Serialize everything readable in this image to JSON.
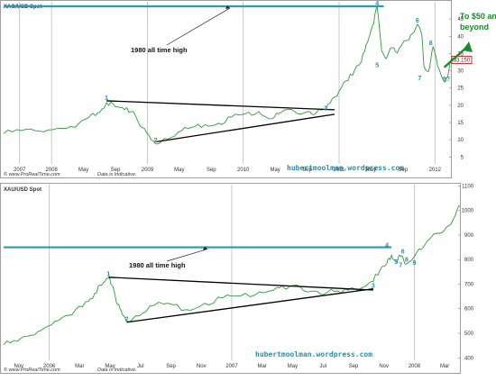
{
  "chart_data": [
    {
      "type": "line",
      "title": "XAG/USD Spot",
      "x_ticks": [
        "2007",
        "2008",
        "May",
        "Sep",
        "2009",
        "May",
        "Sep",
        "2010",
        "May",
        "Sep",
        "2011",
        "May",
        "Sep",
        "2012"
      ],
      "y_ticks": [
        5,
        10,
        15,
        20,
        25,
        30,
        35,
        40,
        45
      ],
      "ylim": [
        3,
        50
      ],
      "last_value_label": "33.150",
      "all_time_high_label": "1980 all time high",
      "all_time_high_value": 48.7,
      "target_label": "To $50 and beyond",
      "wave_labels": [
        {
          "label": "1",
          "x": 0.23,
          "y": 21
        },
        {
          "label": "2",
          "x": 0.34,
          "y": 8.8
        },
        {
          "label": "3",
          "x": 0.72,
          "y": 18
        },
        {
          "label": "4",
          "x": 0.835,
          "y": 48.4
        },
        {
          "label": "5",
          "x": 0.835,
          "y": 30.5
        },
        {
          "label": "6",
          "x": 0.925,
          "y": 43.5
        },
        {
          "label": "7",
          "x": 0.93,
          "y": 26.8
        },
        {
          "label": "8",
          "x": 0.955,
          "y": 37
        },
        {
          "label": "9?",
          "x": 0.99,
          "y": 26.5
        }
      ],
      "price_series": [
        [
          0.0,
          11.8
        ],
        [
          0.04,
          12.7
        ],
        [
          0.08,
          12.5
        ],
        [
          0.12,
          13.3
        ],
        [
          0.16,
          13.6
        ],
        [
          0.19,
          16.4
        ],
        [
          0.21,
          17.8
        ],
        [
          0.23,
          20.8
        ],
        [
          0.25,
          19.5
        ],
        [
          0.27,
          18.7
        ],
        [
          0.29,
          18.2
        ],
        [
          0.31,
          13.5
        ],
        [
          0.33,
          10.0
        ],
        [
          0.34,
          8.8
        ],
        [
          0.36,
          10.4
        ],
        [
          0.39,
          12.2
        ],
        [
          0.42,
          13.6
        ],
        [
          0.45,
          14.4
        ],
        [
          0.48,
          14.8
        ],
        [
          0.51,
          16.6
        ],
        [
          0.54,
          17.5
        ],
        [
          0.57,
          18.2
        ],
        [
          0.6,
          16.1
        ],
        [
          0.62,
          17.9
        ],
        [
          0.65,
          18.3
        ],
        [
          0.68,
          18.2
        ],
        [
          0.7,
          18.0
        ],
        [
          0.72,
          18.6
        ],
        [
          0.74,
          22.4
        ],
        [
          0.76,
          26.6
        ],
        [
          0.78,
          28.7
        ],
        [
          0.8,
          32.6
        ],
        [
          0.81,
          37.5
        ],
        [
          0.825,
          43.2
        ],
        [
          0.835,
          48.4
        ],
        [
          0.845,
          36.0
        ],
        [
          0.855,
          33.5
        ],
        [
          0.865,
          36.6
        ],
        [
          0.88,
          35.2
        ],
        [
          0.9,
          38.8
        ],
        [
          0.91,
          40.4
        ],
        [
          0.925,
          43.5
        ],
        [
          0.935,
          40.2
        ],
        [
          0.94,
          31.1
        ],
        [
          0.95,
          29.8
        ],
        [
          0.96,
          37.0
        ],
        [
          0.97,
          31.5
        ],
        [
          0.985,
          26.8
        ],
        [
          0.995,
          29.7
        ],
        [
          1.0,
          33.2
        ]
      ],
      "trend_lines": [
        {
          "from": [
            0.23,
            21.3
          ],
          "to": [
            0.74,
            18.7
          ]
        },
        {
          "from": [
            0.34,
            9.4
          ],
          "to": [
            0.74,
            17.4
          ]
        }
      ],
      "footer_left": "© www.ProRealTime.com",
      "footer_note": "Data is Indicative.",
      "watermark": "hubertmoolman.wordpress.com"
    },
    {
      "type": "line",
      "title": "XAU/USD Spot",
      "x_ticks": [
        "Nov",
        "2006",
        "Mar",
        "May",
        "Jul",
        "Sep",
        "Nov",
        "2007",
        "Mar",
        "May",
        "Jul",
        "Sep",
        "Nov",
        "2008",
        "Mar"
      ],
      "y_ticks": [
        400,
        500,
        600,
        700,
        800,
        900,
        1000,
        1100
      ],
      "ylim": [
        390,
        1105
      ],
      "all_time_high_label": "1980 all time high",
      "all_time_high_value": 850,
      "wave_labels": [
        {
          "label": "1",
          "x": 0.23,
          "y": 726
        },
        {
          "label": "2",
          "x": 0.27,
          "y": 543
        },
        {
          "label": "3",
          "x": 0.81,
          "y": 678
        },
        {
          "label": "4",
          "x": 0.84,
          "y": 842
        },
        {
          "label": "5",
          "x": 0.86,
          "y": 775
        },
        {
          "label": "6",
          "x": 0.875,
          "y": 817
        },
        {
          "label": "7",
          "x": 0.87,
          "y": 762
        },
        {
          "label": "8",
          "x": 0.883,
          "y": 785
        },
        {
          "label": "9",
          "x": 0.9,
          "y": 772
        }
      ],
      "price_series": [
        [
          0.0,
          453
        ],
        [
          0.03,
          467
        ],
        [
          0.06,
          492
        ],
        [
          0.09,
          522
        ],
        [
          0.12,
          551
        ],
        [
          0.15,
          575
        ],
        [
          0.18,
          629
        ],
        [
          0.2,
          664
        ],
        [
          0.215,
          695
        ],
        [
          0.23,
          724
        ],
        [
          0.24,
          689
        ],
        [
          0.25,
          617
        ],
        [
          0.26,
          577
        ],
        [
          0.27,
          547
        ],
        [
          0.29,
          571
        ],
        [
          0.32,
          610
        ],
        [
          0.36,
          622
        ],
        [
          0.4,
          596
        ],
        [
          0.44,
          622
        ],
        [
          0.48,
          645
        ],
        [
          0.52,
          653
        ],
        [
          0.56,
          668
        ],
        [
          0.6,
          687
        ],
        [
          0.62,
          680
        ],
        [
          0.65,
          689
        ],
        [
          0.68,
          672
        ],
        [
          0.71,
          668
        ],
        [
          0.74,
          664
        ],
        [
          0.77,
          681
        ],
        [
          0.8,
          703
        ],
        [
          0.82,
          736
        ],
        [
          0.84,
          784
        ],
        [
          0.85,
          819
        ],
        [
          0.86,
          794
        ],
        [
          0.87,
          813
        ],
        [
          0.88,
          782
        ],
        [
          0.89,
          793
        ],
        [
          0.9,
          812
        ],
        [
          0.92,
          850
        ],
        [
          0.95,
          907
        ],
        [
          0.97,
          931
        ],
        [
          0.99,
          980
        ],
        [
          1.0,
          1018
        ]
      ],
      "trend_lines": [
        {
          "from": [
            0.23,
            728
          ],
          "to": [
            0.81,
            676
          ]
        },
        {
          "from": [
            0.27,
            545
          ],
          "to": [
            0.81,
            681
          ]
        }
      ],
      "footer_left": "© www.ProRealTime.com",
      "footer_note": "Data is Indicative.",
      "watermark": "hubertmoolman.wordpress.com"
    }
  ],
  "colors": {
    "price_line": "#2f9a3a",
    "ath_line": "#2a9bb5",
    "trend_line": "#000000",
    "grid": "#b0b0b0",
    "wave_label": "#2a8fa8",
    "target": "#1a8a2e",
    "last_price_box": "#cc0000"
  }
}
